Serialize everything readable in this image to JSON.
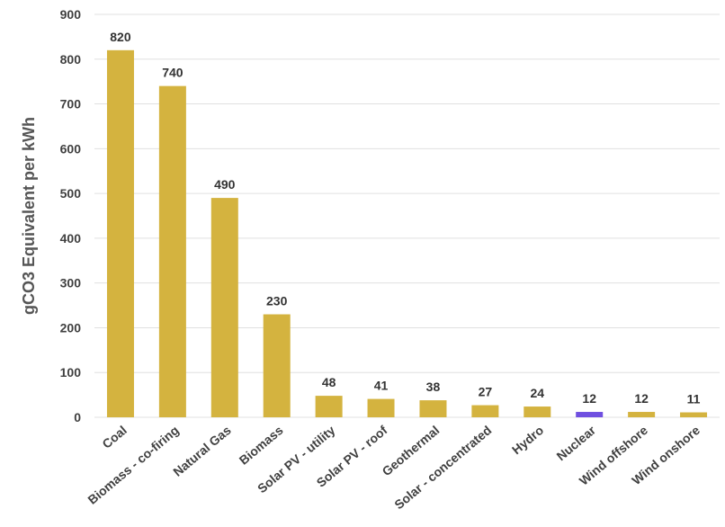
{
  "chart_data": {
    "type": "bar",
    "title": "",
    "xlabel": "",
    "ylabel": "gCO3 Equivalent per kWh",
    "ylim": [
      0,
      900
    ],
    "yticks": [
      0,
      100,
      200,
      300,
      400,
      500,
      600,
      700,
      800,
      900
    ],
    "grid": true,
    "legend": "none",
    "categories": [
      "Coal",
      "Biomass - co-firing",
      "Natural Gas",
      "Biomass",
      "Solar PV - utility",
      "Solar PV - roof",
      "Geothermal",
      "Solar - concentrated",
      "Hydro",
      "Nuclear",
      "Wind offshore",
      "Wind onshore"
    ],
    "values": [
      820,
      740,
      490,
      230,
      48,
      41,
      38,
      27,
      24,
      12,
      12,
      11
    ],
    "bar_colors": [
      "#d4b33f",
      "#d4b33f",
      "#d4b33f",
      "#d4b33f",
      "#d4b33f",
      "#d4b33f",
      "#d4b33f",
      "#d4b33f",
      "#d4b33f",
      "#6f4fe0",
      "#d4b33f",
      "#d4b33f"
    ]
  }
}
